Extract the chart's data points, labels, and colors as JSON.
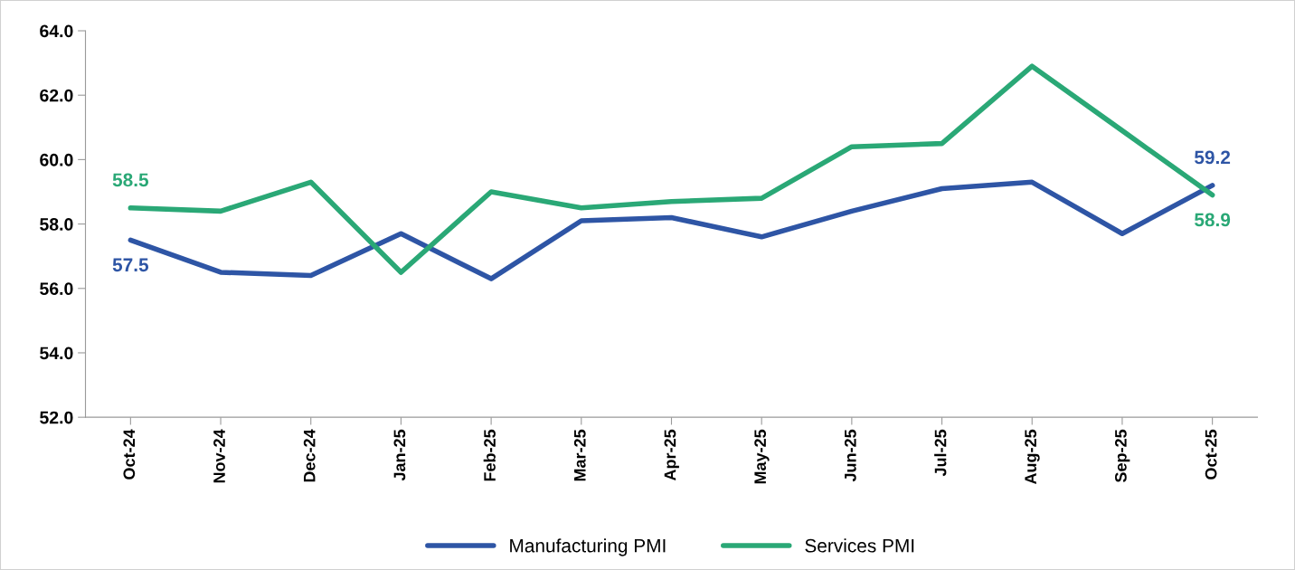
{
  "chart_data": {
    "type": "line",
    "categories": [
      "Oct-24",
      "Nov-24",
      "Dec-24",
      "Jan-25",
      "Feb-25",
      "Mar-25",
      "Apr-25",
      "May-25",
      "Jun-25",
      "Jul-25",
      "Aug-25",
      "Sep-25",
      "Oct-25"
    ],
    "series": [
      {
        "name": "Manufacturing PMI",
        "color": "#2e55a5",
        "values": [
          57.5,
          56.5,
          56.4,
          57.7,
          56.3,
          58.1,
          58.2,
          57.6,
          58.4,
          59.1,
          59.3,
          57.7,
          59.2
        ],
        "value_labels": [
          "57.5",
          null,
          null,
          null,
          null,
          null,
          null,
          null,
          null,
          null,
          null,
          null,
          "59.2"
        ]
      },
      {
        "name": "Services PMI",
        "color": "#2aa876",
        "values": [
          58.5,
          58.4,
          59.3,
          56.5,
          59.0,
          58.5,
          58.7,
          58.8,
          60.4,
          60.5,
          62.9,
          60.9,
          58.9
        ],
        "value_labels": [
          "58.5",
          null,
          null,
          null,
          null,
          null,
          null,
          null,
          null,
          null,
          null,
          null,
          "58.9"
        ]
      }
    ],
    "ylim": [
      52,
      64
    ],
    "yticks": [
      {
        "value": 52,
        "label": "52.0"
      },
      {
        "value": 54,
        "label": "54.0"
      },
      {
        "value": 56,
        "label": "56.0"
      },
      {
        "value": 58,
        "label": "58.0"
      },
      {
        "value": 60,
        "label": "60.0"
      },
      {
        "value": 62,
        "label": "62.0"
      },
      {
        "value": 64,
        "label": "64.0"
      }
    ],
    "grid": false,
    "legend": "bottom",
    "marker": "none",
    "line_style": "solid"
  }
}
